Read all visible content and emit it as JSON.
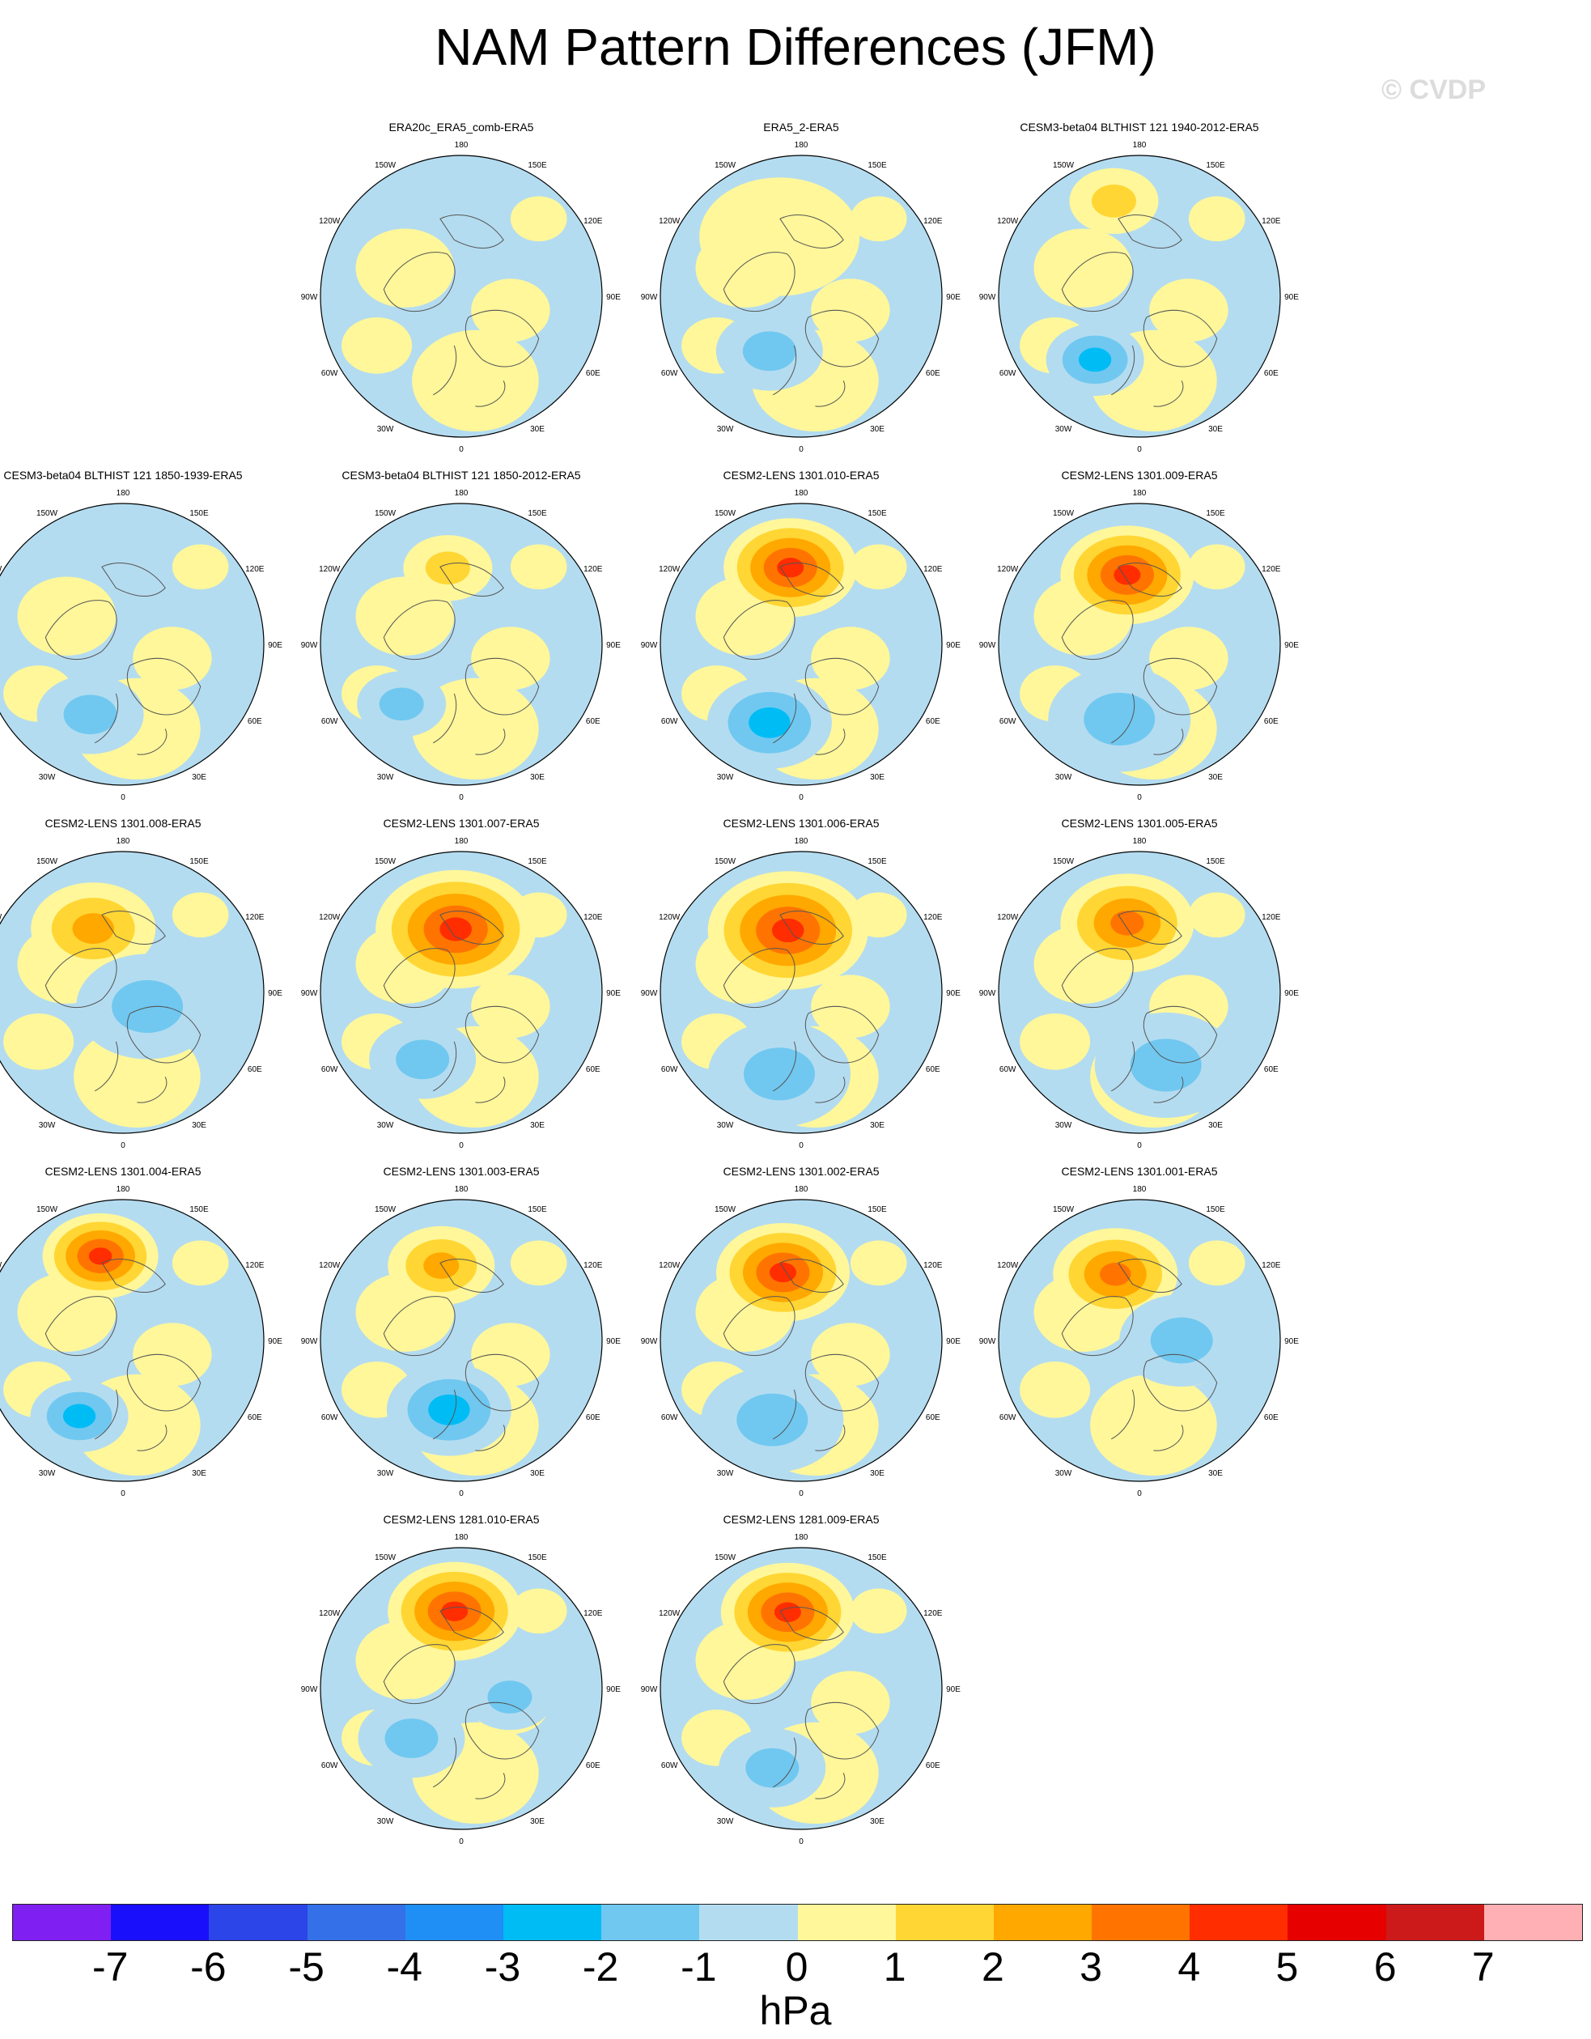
{
  "header": {
    "title": "NAM Pattern Differences (JFM)",
    "watermark": "© CVDP"
  },
  "map_labels": {
    "n": "180",
    "nne": "150E",
    "ene": "120E",
    "e": "90E",
    "ese": "60E",
    "sse": "30E",
    "s": "0",
    "ssw": "30W",
    "wsw": "60W",
    "w": "90W",
    "wnw": "120W",
    "nnw": "150W"
  },
  "panels": [
    {
      "title": "ERA20c_ERA5_comb-ERA5",
      "blobs": []
    },
    {
      "title": "ERA5_2-ERA5",
      "blobs": [
        {
          "lon": 200,
          "r": 0.45,
          "v": 0.5,
          "s": 0.9
        },
        {
          "lon": 330,
          "r": 0.45,
          "v": -1.4,
          "s": 0.6
        }
      ]
    },
    {
      "title": "CESM3-beta04 BLTHIST 121 1940-2012-ERA5",
      "blobs": [
        {
          "lon": 195,
          "r": 0.7,
          "v": 1.6,
          "s": 0.5
        },
        {
          "lon": 325,
          "r": 0.55,
          "v": -2.2,
          "s": 0.55
        }
      ]
    },
    {
      "title": "CESM3-beta04 BLTHIST 121 1850-1939-ERA5",
      "blobs": [
        {
          "lon": 335,
          "r": 0.55,
          "v": -1.6,
          "s": 0.6
        }
      ]
    },
    {
      "title": "CESM3-beta04 BLTHIST 121 1850-2012-ERA5",
      "blobs": [
        {
          "lon": 190,
          "r": 0.55,
          "v": 1.3,
          "s": 0.5
        },
        {
          "lon": 315,
          "r": 0.6,
          "v": -1.5,
          "s": 0.5
        }
      ]
    },
    {
      "title": "CESM2-LENS 1301.010-ERA5",
      "blobs": [
        {
          "lon": 188,
          "r": 0.55,
          "v": 4.6,
          "s": 0.75
        },
        {
          "lon": 338,
          "r": 0.6,
          "v": -2.8,
          "s": 0.7
        }
      ]
    },
    {
      "title": "CESM2-LENS 1301.009-ERA5",
      "blobs": [
        {
          "lon": 190,
          "r": 0.5,
          "v": 4.1,
          "s": 0.75
        },
        {
          "lon": 345,
          "r": 0.55,
          "v": -2.0,
          "s": 0.8
        }
      ]
    },
    {
      "title": "CESM2-LENS 1301.008-ERA5",
      "blobs": [
        {
          "lon": 205,
          "r": 0.5,
          "v": 2.6,
          "s": 0.7
        },
        {
          "lon": 60,
          "r": 0.2,
          "v": -1.7,
          "s": 0.8
        }
      ]
    },
    {
      "title": "CESM2-LENS 1301.007-ERA5",
      "blobs": [
        {
          "lon": 185,
          "r": 0.45,
          "v": 4.1,
          "s": 0.9
        },
        {
          "lon": 330,
          "r": 0.55,
          "v": -1.6,
          "s": 0.6
        }
      ]
    },
    {
      "title": "CESM2-LENS 1301.006-ERA5",
      "blobs": [
        {
          "lon": 192,
          "r": 0.45,
          "v": 4.9,
          "s": 0.9
        },
        {
          "lon": 345,
          "r": 0.6,
          "v": -1.4,
          "s": 0.8
        }
      ]
    },
    {
      "title": "CESM2-LENS 1301.005-ERA5",
      "blobs": [
        {
          "lon": 190,
          "r": 0.5,
          "v": 3.9,
          "s": 0.75
        },
        {
          "lon": 20,
          "r": 0.55,
          "v": -1.2,
          "s": 0.8
        }
      ]
    },
    {
      "title": "CESM2-LENS 1301.004-ERA5",
      "blobs": [
        {
          "lon": 195,
          "r": 0.62,
          "v": 4.1,
          "s": 0.65
        },
        {
          "lon": 330,
          "r": 0.62,
          "v": -2.6,
          "s": 0.55
        }
      ]
    },
    {
      "title": "CESM2-LENS 1301.003-ERA5",
      "blobs": [
        {
          "lon": 195,
          "r": 0.55,
          "v": 2.3,
          "s": 0.6
        },
        {
          "lon": 350,
          "r": 0.5,
          "v": -2.2,
          "s": 0.7
        }
      ]
    },
    {
      "title": "CESM2-LENS 1301.002-ERA5",
      "blobs": [
        {
          "lon": 195,
          "r": 0.5,
          "v": 4.1,
          "s": 0.75
        },
        {
          "lon": 340,
          "r": 0.6,
          "v": -1.2,
          "s": 0.8
        }
      ]
    },
    {
      "title": "CESM2-LENS 1301.001-ERA5",
      "blobs": [
        {
          "lon": 200,
          "r": 0.5,
          "v": 3.2,
          "s": 0.7
        },
        {
          "lon": 90,
          "r": 0.3,
          "v": -1.7,
          "s": 0.7
        }
      ]
    },
    {
      "title": "CESM2-LENS 1281.010-ERA5",
      "blobs": [
        {
          "lon": 185,
          "r": 0.55,
          "v": 4.2,
          "s": 0.75
        },
        {
          "lon": 315,
          "r": 0.5,
          "v": -1.5,
          "s": 0.6
        },
        {
          "lon": 80,
          "r": 0.35,
          "v": -1.6,
          "s": 0.5
        }
      ]
    },
    {
      "title": "CESM2-LENS 1281.009-ERA5",
      "blobs": [
        {
          "lon": 190,
          "r": 0.55,
          "v": 4.3,
          "s": 0.75
        },
        {
          "lon": 340,
          "r": 0.6,
          "v": -1.5,
          "s": 0.6
        }
      ]
    }
  ],
  "colorbar": {
    "ticks": [
      "-7",
      "-6",
      "-5",
      "-4",
      "-3",
      "-2",
      "-1",
      "0",
      "1",
      "2",
      "3",
      "4",
      "5",
      "6",
      "7"
    ],
    "colors": [
      "#7f1ff2",
      "#1a0ffa",
      "#2b45e8",
      "#3470e8",
      "#1f8ef5",
      "#00bcf5",
      "#70c8f0",
      "#b4dcf0",
      "#fff79a",
      "#ffd633",
      "#ffa800",
      "#ff7400",
      "#ff2d00",
      "#e60000",
      "#cc1a1a",
      "#ffb0b4"
    ],
    "units": "hPa"
  }
}
